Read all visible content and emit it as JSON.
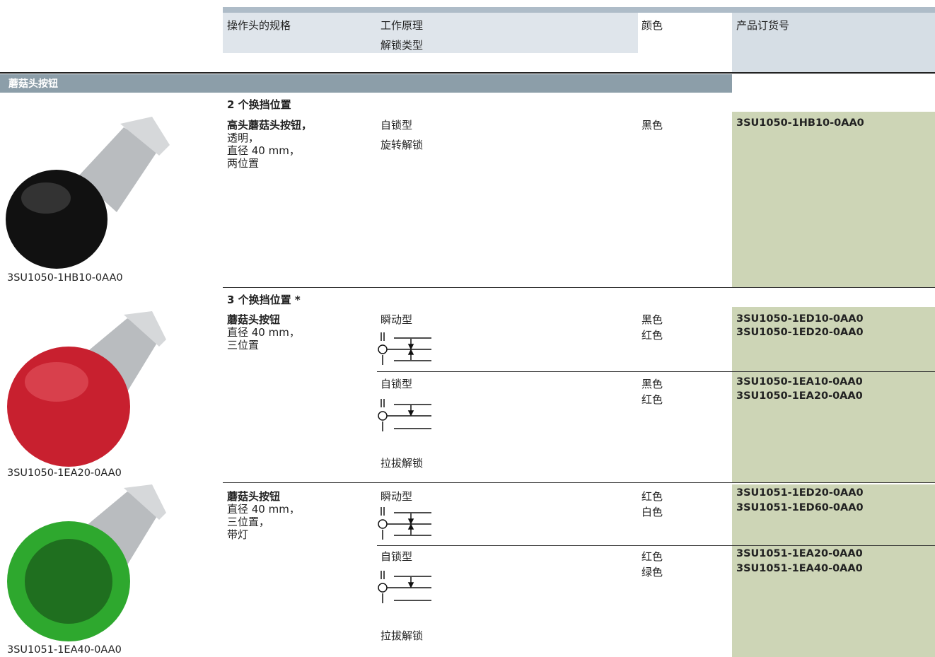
{
  "header": {
    "spec": "操作头的规格",
    "principle": "工作原理",
    "unlock_type": "解锁类型",
    "color": "颜色",
    "order_no": "产品订货号"
  },
  "section": "蘑菇头按钮",
  "images": [
    {
      "caption": "3SU1050-1HB10-0AA0"
    },
    {
      "caption": "3SU1050-1EA20-0AA0"
    },
    {
      "caption": "3SU1051-1EA40-0AA0"
    }
  ],
  "groups": [
    {
      "title": "2 个换挡位置",
      "items": [
        {
          "name": "高头蘑菇头按钮，",
          "details": [
            "透明，",
            "直径 40 mm，",
            "两位置"
          ],
          "variants": [
            {
              "principle": "自锁型",
              "unlock": "旋转解锁",
              "colors": [
                "黑色"
              ],
              "order_numbers": [
                "3SU1050-1HB10-0AA0"
              ]
            }
          ]
        }
      ]
    },
    {
      "title": "3 个换挡位置 *",
      "items": [
        {
          "name": "蘑菇头按钮",
          "details": [
            "直径 40 mm，",
            "三位置"
          ],
          "variants": [
            {
              "principle": "瞬动型",
              "colors": [
                "黑色",
                "红色"
              ],
              "order_numbers": [
                "3SU1050-1ED10-0AA0",
                "3SU1050-1ED20-0AA0"
              ]
            },
            {
              "principle": "自锁型",
              "unlock": "拉拔解锁",
              "colors": [
                "黑色",
                "红色"
              ],
              "order_numbers": [
                "3SU1050-1EA10-0AA0",
                "3SU1050-1EA20-0AA0"
              ]
            }
          ]
        },
        {
          "name": "蘑菇头按钮",
          "details": [
            "直径 40 mm，",
            "三位置，",
            "带灯"
          ],
          "variants": [
            {
              "principle": "瞬动型",
              "colors": [
                "红色",
                "白色"
              ],
              "order_numbers": [
                "3SU1051-1ED20-0AA0",
                "3SU1051-1ED60-0AA0"
              ]
            },
            {
              "principle": "自锁型",
              "unlock": "拉拔解锁",
              "colors": [
                "红色",
                "绿色"
              ],
              "order_numbers": [
                "3SU1051-1EA20-0AA0",
                "3SU1051-1EA40-0AA0"
              ]
            }
          ]
        }
      ]
    }
  ]
}
